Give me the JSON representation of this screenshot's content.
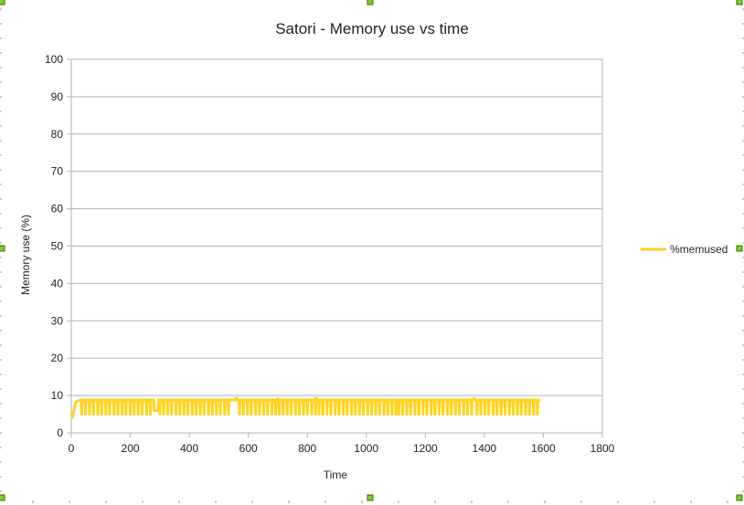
{
  "chart_data": {
    "type": "line",
    "title": "Satori - Memory use vs time",
    "xlabel": "Time",
    "ylabel": "Memory use (%)",
    "xlim": [
      0,
      1800
    ],
    "ylim": [
      0,
      100
    ],
    "xticks": [
      0,
      200,
      400,
      600,
      800,
      1000,
      1200,
      1400,
      1600,
      1800
    ],
    "yticks": [
      0,
      10,
      20,
      30,
      40,
      50,
      60,
      70,
      80,
      90,
      100
    ],
    "grid": true,
    "legend_position": "right",
    "series": [
      {
        "name": "%memused",
        "color": "#ffd320",
        "baseline": 8.8,
        "x_range": [
          0,
          1590
        ],
        "start_values": [
          [
            0,
            4.0
          ],
          [
            5,
            4.5
          ],
          [
            10,
            6.5
          ],
          [
            15,
            8.2
          ],
          [
            20,
            8.5
          ]
        ],
        "dip_value": 5.0,
        "dip_x": [
          35,
          48,
          62,
          75,
          90,
          103,
          117,
          130,
          145,
          158,
          172,
          185,
          200,
          213,
          227,
          240,
          255,
          268,
          300,
          313,
          327,
          340,
          355,
          368,
          382,
          395,
          410,
          423,
          437,
          450,
          465,
          478,
          492,
          505,
          520,
          533,
          570,
          583,
          597,
          610,
          625,
          638,
          652,
          665,
          680,
          693,
          705,
          718,
          732,
          745,
          760,
          773,
          787,
          800,
          815,
          828,
          840,
          853,
          867,
          880,
          895,
          908,
          922,
          935,
          950,
          963,
          977,
          990,
          1005,
          1018,
          1032,
          1045,
          1060,
          1073,
          1087,
          1100,
          1110,
          1123,
          1137,
          1150,
          1165,
          1178,
          1192,
          1205,
          1220,
          1233,
          1247,
          1260,
          1275,
          1288,
          1302,
          1315,
          1330,
          1343,
          1357,
          1375,
          1388,
          1402,
          1415,
          1430,
          1443,
          1457,
          1470,
          1485,
          1498,
          1512,
          1525,
          1540,
          1553,
          1567,
          1580
        ],
        "low_segments": [
          [
            280,
            295,
            6.0
          ]
        ],
        "bumps": [
          [
            560,
            9.3
          ],
          [
            700,
            9.2
          ],
          [
            830,
            9.3
          ],
          [
            1100,
            9.4
          ],
          [
            1365,
            9.3
          ]
        ]
      }
    ]
  }
}
